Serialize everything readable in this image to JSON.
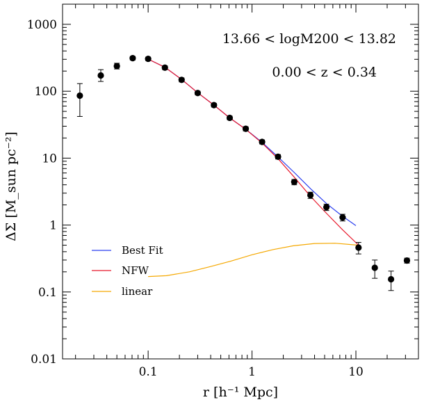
{
  "chart_data": {
    "type": "scatter",
    "xscale": "log",
    "yscale": "log",
    "xlim": [
      0.015,
      40
    ],
    "ylim": [
      0.01,
      2000
    ],
    "x_ticks": [
      {
        "value": 0.1,
        "label": "0.1"
      },
      {
        "value": 1,
        "label": "1"
      },
      {
        "value": 10,
        "label": "10"
      }
    ],
    "y_ticks": [
      {
        "value": 0.01,
        "label": "0.01"
      },
      {
        "value": 0.1,
        "label": "0.1"
      },
      {
        "value": 1,
        "label": "1"
      },
      {
        "value": 10,
        "label": "10"
      },
      {
        "value": 100,
        "label": "100"
      },
      {
        "value": 1000,
        "label": "1000"
      }
    ],
    "xlabel": "r [h⁻¹ Mpc]",
    "ylabel": "ΔΣ [M_sun pc⁻²]",
    "annotations": [
      "13.66 < logM200 < 13.82",
      "0.00 < z < 0.34"
    ],
    "points": [
      {
        "x": 0.022,
        "y": 86,
        "lo": 42,
        "hi": 130
      },
      {
        "x": 0.035,
        "y": 172,
        "lo": 140,
        "hi": 210
      },
      {
        "x": 0.05,
        "y": 238,
        "lo": 215,
        "hi": 262
      },
      {
        "x": 0.071,
        "y": 312,
        "lo": 292,
        "hi": 332
      },
      {
        "x": 0.1,
        "y": 305,
        "lo": 287,
        "hi": 323
      },
      {
        "x": 0.145,
        "y": 225,
        "lo": 210,
        "hi": 240
      },
      {
        "x": 0.21,
        "y": 148,
        "lo": 138,
        "hi": 158
      },
      {
        "x": 0.3,
        "y": 94,
        "lo": 88,
        "hi": 100
      },
      {
        "x": 0.43,
        "y": 62,
        "lo": 58,
        "hi": 66
      },
      {
        "x": 0.61,
        "y": 40,
        "lo": 37.5,
        "hi": 42.5
      },
      {
        "x": 0.87,
        "y": 27.5,
        "lo": 25.5,
        "hi": 29.5
      },
      {
        "x": 1.25,
        "y": 17.5,
        "lo": 16.3,
        "hi": 18.7
      },
      {
        "x": 1.78,
        "y": 10.5,
        "lo": 9.7,
        "hi": 11.3
      },
      {
        "x": 2.55,
        "y": 4.4,
        "lo": 4.0,
        "hi": 4.8
      },
      {
        "x": 3.65,
        "y": 2.8,
        "lo": 2.5,
        "hi": 3.1
      },
      {
        "x": 5.2,
        "y": 1.85,
        "lo": 1.65,
        "hi": 2.05
      },
      {
        "x": 7.45,
        "y": 1.3,
        "lo": 1.15,
        "hi": 1.45
      },
      {
        "x": 10.6,
        "y": 0.46,
        "lo": 0.37,
        "hi": 0.55
      },
      {
        "x": 15.2,
        "y": 0.23,
        "lo": 0.16,
        "hi": 0.3
      },
      {
        "x": 21.8,
        "y": 0.155,
        "lo": 0.105,
        "hi": 0.205
      },
      {
        "x": 31,
        "y": 0.295,
        "lo": 0.27,
        "hi": 0.32
      }
    ],
    "series": [
      {
        "name": "Best Fit",
        "color": "#2a3ff0",
        "x": [
          0.1,
          0.145,
          0.21,
          0.3,
          0.43,
          0.61,
          0.87,
          1.25,
          1.78,
          2.55,
          3.65,
          5.2,
          7.45,
          10
        ],
        "y": [
          302,
          228,
          150,
          95,
          62,
          40,
          27,
          17.2,
          10.4,
          6.1,
          3.5,
          2.1,
          1.35,
          0.98
        ]
      },
      {
        "name": "NFW",
        "color": "#e8192c",
        "x": [
          0.1,
          0.145,
          0.21,
          0.3,
          0.43,
          0.61,
          0.87,
          1.25,
          1.78,
          2.55,
          3.65,
          5.2,
          7.45,
          10.6
        ],
        "y": [
          302,
          228,
          150,
          95,
          62,
          40,
          27,
          16.8,
          9.8,
          5.2,
          2.7,
          1.5,
          0.85,
          0.5
        ]
      },
      {
        "name": "linear",
        "color": "#f5a800",
        "x": [
          0.1,
          0.15,
          0.25,
          0.4,
          0.63,
          1,
          1.6,
          2.5,
          4,
          6.3,
          10.5
        ],
        "y": [
          0.17,
          0.175,
          0.2,
          0.24,
          0.29,
          0.36,
          0.43,
          0.49,
          0.53,
          0.535,
          0.5
        ]
      }
    ],
    "legend": {
      "placement": "lower-left",
      "entries": [
        "Best Fit",
        "NFW",
        "linear"
      ]
    }
  }
}
